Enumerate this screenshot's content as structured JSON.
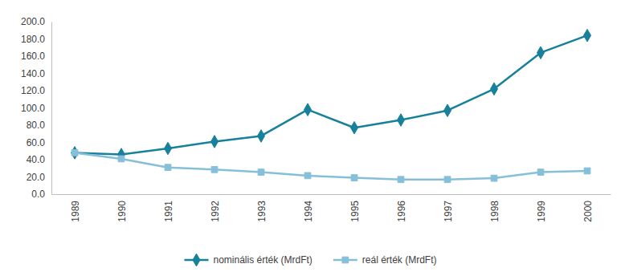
{
  "chart_data": {
    "type": "line",
    "categories": [
      "1989",
      "1990",
      "1991",
      "1992",
      "1993",
      "1994",
      "1995",
      "1996",
      "1997",
      "1998",
      "1999",
      "2000"
    ],
    "series": [
      {
        "name": "nominális érték (MrdFt)",
        "color": "#17809a",
        "marker": "diamond",
        "line_style": "solid",
        "values": [
          48,
          46,
          53,
          61,
          67.5,
          98,
          77,
          86,
          97,
          122,
          164,
          184
        ]
      },
      {
        "name": "reál érték (MrdFt)",
        "color": "#86bfd9",
        "marker": "square",
        "line_style": "solid",
        "values": [
          48,
          41,
          31,
          28.5,
          25.5,
          21.5,
          19,
          17,
          17,
          18.5,
          25.5,
          27
        ]
      }
    ],
    "ylim": [
      0,
      200
    ],
    "yticks": [
      {
        "value": 0,
        "label": "0.0"
      },
      {
        "value": 20,
        "label": "20.0"
      },
      {
        "value": 40,
        "label": "40.0"
      },
      {
        "value": 60,
        "label": "60.0"
      },
      {
        "value": 80,
        "label": "80.0"
      },
      {
        "value": 100,
        "label": "100.0"
      },
      {
        "value": 120,
        "label": "120.0"
      },
      {
        "value": 140,
        "label": "140.0"
      },
      {
        "value": 160,
        "label": "160.0"
      },
      {
        "value": 180,
        "label": "180.0"
      },
      {
        "value": 200,
        "label": "200.0"
      }
    ],
    "grid": false,
    "legend": "bottom"
  }
}
